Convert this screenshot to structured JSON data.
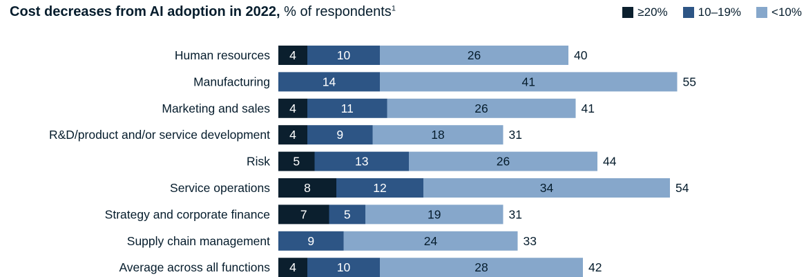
{
  "title": {
    "bold": "Cost decreases from AI adoption in 2022,",
    "sub": " % of respondents",
    "footnote": "1"
  },
  "legend": [
    {
      "label": "≥20%",
      "color": "#0b1f2e"
    },
    {
      "label": "10–19%",
      "color": "#2d5585"
    },
    {
      "label": "<10%",
      "color": "#86a7cb"
    }
  ],
  "chart_data": {
    "type": "bar",
    "orientation": "horizontal",
    "stacked": true,
    "categories": [
      "Human resources",
      "Manufacturing",
      "Marketing and sales",
      "R&D/product and/or service development",
      "Risk",
      "Service operations",
      "Strategy and corporate finance",
      "Supply chain management",
      "Average across all functions"
    ],
    "series": [
      {
        "name": "≥20%",
        "color": "#0b1f2e",
        "values": [
          4,
          0,
          4,
          4,
          5,
          8,
          7,
          0,
          4
        ]
      },
      {
        "name": "10–19%",
        "color": "#2d5585",
        "values": [
          10,
          14,
          11,
          9,
          13,
          12,
          5,
          9,
          10
        ]
      },
      {
        "name": "<10%",
        "color": "#86a7cb",
        "values": [
          26,
          41,
          26,
          18,
          26,
          34,
          19,
          24,
          28
        ]
      }
    ],
    "totals": [
      40,
      55,
      41,
      31,
      44,
      54,
      31,
      33,
      42
    ],
    "legend_position": "top-right",
    "grid": false
  }
}
